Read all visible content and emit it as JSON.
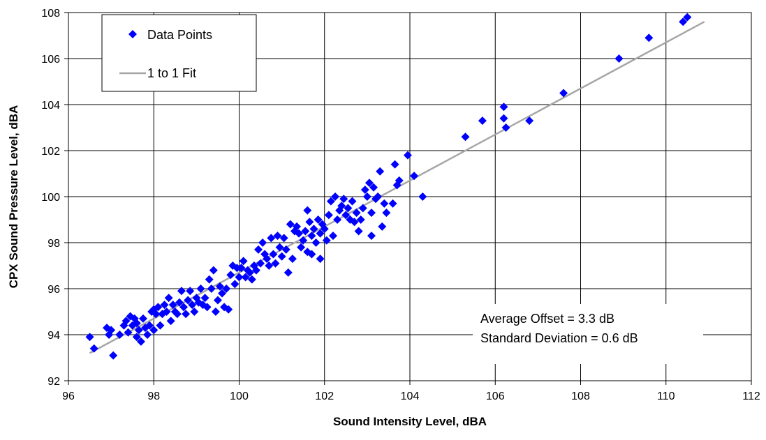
{
  "chart_data": {
    "type": "scatter",
    "title": "",
    "xlabel": "Sound Intensity Level, dBA",
    "ylabel": "CPX Sound Pressure Level, dBA",
    "xlim": [
      96,
      112
    ],
    "ylim": [
      92,
      108
    ],
    "xticks": [
      "96",
      "98",
      "100",
      "102",
      "104",
      "106",
      "108",
      "110",
      "112"
    ],
    "yticks": [
      "92",
      "94",
      "96",
      "98",
      "100",
      "102",
      "104",
      "106",
      "108"
    ],
    "grid": true,
    "legend_position": "top-left",
    "legend": [
      "Data Points",
      "1 to 1 Fit"
    ],
    "annotations": [
      "Average Offset = 3.3 dB",
      "Standard Deviation = 0.6 dB"
    ],
    "colors": {
      "points": "#0000ff",
      "fit_line": "#a6a6a6",
      "grid": "#000000"
    },
    "series": [
      {
        "name": "Data Points",
        "marker": "diamond",
        "points": [
          [
            96.5,
            93.9
          ],
          [
            96.6,
            93.4
          ],
          [
            96.9,
            94.3
          ],
          [
            96.95,
            94.0
          ],
          [
            97.0,
            94.2
          ],
          [
            97.05,
            93.1
          ],
          [
            97.2,
            94.0
          ],
          [
            97.3,
            94.4
          ],
          [
            97.35,
            94.6
          ],
          [
            97.4,
            94.1
          ],
          [
            97.45,
            94.8
          ],
          [
            97.5,
            94.4
          ],
          [
            97.55,
            94.7
          ],
          [
            97.6,
            93.9
          ],
          [
            97.6,
            94.5
          ],
          [
            97.65,
            94.2
          ],
          [
            97.7,
            93.7
          ],
          [
            97.75,
            94.7
          ],
          [
            97.8,
            94.3
          ],
          [
            97.85,
            94.0
          ],
          [
            97.9,
            94.4
          ],
          [
            97.95,
            95.0
          ],
          [
            98.0,
            94.2
          ],
          [
            98.0,
            95.1
          ],
          [
            98.05,
            94.9
          ],
          [
            98.1,
            95.2
          ],
          [
            98.15,
            94.4
          ],
          [
            98.2,
            94.9
          ],
          [
            98.25,
            95.3
          ],
          [
            98.3,
            95.0
          ],
          [
            98.35,
            95.6
          ],
          [
            98.4,
            94.6
          ],
          [
            98.45,
            95.3
          ],
          [
            98.5,
            95.0
          ],
          [
            98.55,
            94.9
          ],
          [
            98.6,
            95.4
          ],
          [
            98.65,
            95.9
          ],
          [
            98.7,
            95.2
          ],
          [
            98.75,
            94.9
          ],
          [
            98.8,
            95.5
          ],
          [
            98.85,
            95.9
          ],
          [
            98.9,
            95.3
          ],
          [
            98.95,
            95.0
          ],
          [
            99.0,
            95.6
          ],
          [
            99.05,
            95.4
          ],
          [
            99.1,
            96.0
          ],
          [
            99.15,
            95.3
          ],
          [
            99.2,
            95.6
          ],
          [
            99.25,
            95.2
          ],
          [
            99.3,
            96.4
          ],
          [
            99.35,
            96.0
          ],
          [
            99.4,
            96.8
          ],
          [
            99.45,
            95.0
          ],
          [
            99.5,
            95.5
          ],
          [
            99.55,
            96.1
          ],
          [
            99.6,
            95.8
          ],
          [
            99.65,
            95.2
          ],
          [
            99.7,
            96.0
          ],
          [
            99.75,
            95.1
          ],
          [
            99.8,
            96.6
          ],
          [
            99.85,
            97.0
          ],
          [
            99.9,
            96.2
          ],
          [
            99.95,
            96.9
          ],
          [
            100.0,
            96.5
          ],
          [
            100.05,
            96.9
          ],
          [
            100.1,
            97.2
          ],
          [
            100.15,
            96.5
          ],
          [
            100.2,
            96.8
          ],
          [
            100.25,
            96.7
          ],
          [
            100.3,
            96.4
          ],
          [
            100.35,
            97.0
          ],
          [
            100.4,
            96.8
          ],
          [
            100.45,
            97.7
          ],
          [
            100.5,
            97.1
          ],
          [
            100.55,
            98.0
          ],
          [
            100.6,
            97.5
          ],
          [
            100.65,
            97.3
          ],
          [
            100.7,
            97.0
          ],
          [
            100.75,
            98.2
          ],
          [
            100.8,
            97.5
          ],
          [
            100.85,
            97.1
          ],
          [
            100.9,
            98.3
          ],
          [
            100.95,
            97.8
          ],
          [
            101.0,
            97.4
          ],
          [
            101.05,
            98.2
          ],
          [
            101.1,
            97.7
          ],
          [
            101.15,
            96.7
          ],
          [
            101.2,
            98.8
          ],
          [
            101.25,
            97.3
          ],
          [
            101.3,
            98.5
          ],
          [
            101.35,
            98.7
          ],
          [
            101.4,
            98.4
          ],
          [
            101.45,
            97.8
          ],
          [
            101.5,
            98.1
          ],
          [
            101.55,
            98.5
          ],
          [
            101.6,
            97.6
          ],
          [
            101.6,
            99.4
          ],
          [
            101.65,
            98.9
          ],
          [
            101.7,
            98.3
          ],
          [
            101.7,
            97.5
          ],
          [
            101.75,
            98.6
          ],
          [
            101.8,
            98.0
          ],
          [
            101.85,
            99.0
          ],
          [
            101.9,
            98.4
          ],
          [
            101.9,
            97.3
          ],
          [
            101.95,
            98.8
          ],
          [
            102.0,
            98.6
          ],
          [
            102.05,
            98.1
          ],
          [
            102.1,
            99.2
          ],
          [
            102.15,
            99.8
          ],
          [
            102.2,
            98.3
          ],
          [
            102.25,
            100.0
          ],
          [
            102.3,
            99.0
          ],
          [
            102.35,
            99.4
          ],
          [
            102.4,
            99.6
          ],
          [
            102.45,
            99.9
          ],
          [
            102.5,
            99.2
          ],
          [
            102.55,
            99.5
          ],
          [
            102.6,
            99.0
          ],
          [
            102.65,
            99.8
          ],
          [
            102.7,
            98.9
          ],
          [
            102.75,
            99.3
          ],
          [
            102.8,
            98.5
          ],
          [
            102.85,
            99.0
          ],
          [
            102.9,
            99.5
          ],
          [
            102.95,
            100.3
          ],
          [
            103.0,
            100.0
          ],
          [
            103.05,
            100.6
          ],
          [
            103.1,
            99.3
          ],
          [
            103.1,
            98.3
          ],
          [
            103.15,
            100.4
          ],
          [
            103.2,
            99.9
          ],
          [
            103.25,
            100.0
          ],
          [
            103.3,
            101.1
          ],
          [
            103.35,
            98.7
          ],
          [
            103.4,
            99.7
          ],
          [
            103.45,
            99.3
          ],
          [
            103.6,
            99.7
          ],
          [
            103.65,
            101.4
          ],
          [
            103.7,
            100.5
          ],
          [
            103.75,
            100.7
          ],
          [
            103.95,
            101.8
          ],
          [
            104.1,
            100.9
          ],
          [
            104.3,
            100.0
          ],
          [
            105.3,
            102.6
          ],
          [
            105.7,
            103.3
          ],
          [
            106.2,
            103.9
          ],
          [
            106.2,
            103.4
          ],
          [
            106.25,
            103.0
          ],
          [
            106.8,
            103.3
          ],
          [
            107.6,
            104.5
          ],
          [
            108.9,
            106.0
          ],
          [
            109.6,
            106.9
          ],
          [
            110.4,
            107.6
          ],
          [
            110.5,
            107.8
          ]
        ]
      },
      {
        "name": "1 to 1 Fit",
        "marker": "line",
        "points": [
          [
            96.5,
            93.2
          ],
          [
            110.9,
            107.6
          ]
        ]
      }
    ]
  }
}
